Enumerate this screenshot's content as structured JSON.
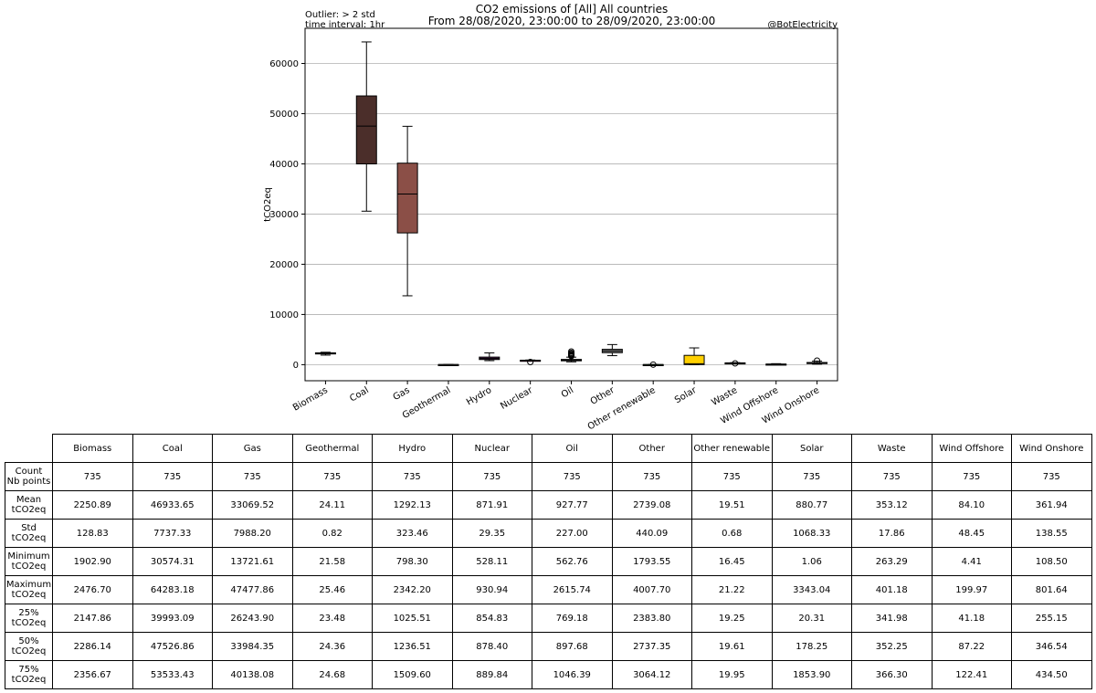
{
  "chart_data": {
    "type": "boxplot",
    "title": [
      "CO2 emissions of [All] All countries",
      "From 28/08/2020, 23:00:00 to 28/09/2020, 23:00:00"
    ],
    "notes": {
      "outlier": "Outlier: > 2 std",
      "interval": "time interval: 1hr",
      "credit": "@BotElectricity"
    },
    "ylabel": "tCO2eq",
    "ylim": [
      -3200,
      67000
    ],
    "yticks": [
      0,
      10000,
      20000,
      30000,
      40000,
      50000,
      60000
    ],
    "grid": "horizontal",
    "categories": [
      "Biomass",
      "Coal",
      "Gas",
      "Geothermal",
      "Hydro",
      "Nuclear",
      "Oil",
      "Other",
      "Other renewable",
      "Solar",
      "Waste",
      "Wind Offshore",
      "Wind Onshore"
    ],
    "colors": [
      "#7a7a7a",
      "#4b2e2a",
      "#8b4f47",
      "#cfc3c0",
      "#5a2a5a",
      "#8a0040",
      "#5c3a1a",
      "#7f7f7f",
      "#35a535",
      "#ffd000",
      "#5a7a1a",
      "#7ec8e3",
      "#1f77b4"
    ],
    "boxes": [
      {
        "min": 1902.9,
        "q1": 2147.86,
        "median": 2286.14,
        "q3": 2356.67,
        "max": 2476.7,
        "outliers": []
      },
      {
        "min": 30574.31,
        "q1": 39993.09,
        "median": 47526.86,
        "q3": 53533.43,
        "max": 64283.18,
        "outliers": []
      },
      {
        "min": 13721.61,
        "q1": 26243.9,
        "median": 33984.35,
        "q3": 40138.08,
        "max": 47477.86,
        "outliers": []
      },
      {
        "min": 21.58,
        "q1": 23.48,
        "median": 24.36,
        "q3": 24.68,
        "max": 25.46,
        "outliers": []
      },
      {
        "min": 798.3,
        "q1": 1025.51,
        "median": 1236.51,
        "q3": 1509.6,
        "max": 2342.2,
        "outliers": []
      },
      {
        "min": 854.83,
        "q1": 854.83,
        "median": 878.4,
        "q3": 889.84,
        "max": 930.94,
        "outliers": [
          528.11
        ]
      },
      {
        "min": 562.76,
        "q1": 769.18,
        "median": 897.68,
        "q3": 1046.39,
        "max": 1500.0,
        "outliers": [
          1700,
          1850,
          2000,
          2150,
          2350,
          2615.74
        ]
      },
      {
        "min": 1793.55,
        "q1": 2383.8,
        "median": 2737.35,
        "q3": 3064.12,
        "max": 4007.7,
        "outliers": []
      },
      {
        "min": 18.5,
        "q1": 19.25,
        "median": 19.61,
        "q3": 19.95,
        "max": 21.22,
        "outliers": [
          16.45
        ]
      },
      {
        "min": 1.06,
        "q1": 20.31,
        "median": 178.25,
        "q3": 1853.9,
        "max": 3343.04,
        "outliers": []
      },
      {
        "min": 310.0,
        "q1": 341.98,
        "median": 352.25,
        "q3": 366.3,
        "max": 401.18,
        "outliers": [
          263.29
        ]
      },
      {
        "min": 4.41,
        "q1": 41.18,
        "median": 87.22,
        "q3": 122.41,
        "max": 199.97,
        "outliers": []
      },
      {
        "min": 108.5,
        "q1": 255.15,
        "median": 346.54,
        "q3": 434.5,
        "max": 720.0,
        "outliers": [
          801.64
        ]
      }
    ]
  },
  "table": {
    "columns": [
      "Biomass",
      "Coal",
      "Gas",
      "Geothermal",
      "Hydro",
      "Nuclear",
      "Oil",
      "Other",
      "Other renewable",
      "Solar",
      "Waste",
      "Wind Offshore",
      "Wind Onshore"
    ],
    "rows": [
      {
        "label": "Count\nNb points",
        "values": [
          "735",
          "735",
          "735",
          "735",
          "735",
          "735",
          "735",
          "735",
          "735",
          "735",
          "735",
          "735",
          "735"
        ]
      },
      {
        "label": "Mean\ntCO2eq",
        "values": [
          "2250.89",
          "46933.65",
          "33069.52",
          "24.11",
          "1292.13",
          "871.91",
          "927.77",
          "2739.08",
          "19.51",
          "880.77",
          "353.12",
          "84.10",
          "361.94"
        ]
      },
      {
        "label": "Std\ntCO2eq",
        "values": [
          "128.83",
          "7737.33",
          "7988.20",
          "0.82",
          "323.46",
          "29.35",
          "227.00",
          "440.09",
          "0.68",
          "1068.33",
          "17.86",
          "48.45",
          "138.55"
        ]
      },
      {
        "label": "Minimum\ntCO2eq",
        "values": [
          "1902.90",
          "30574.31",
          "13721.61",
          "21.58",
          "798.30",
          "528.11",
          "562.76",
          "1793.55",
          "16.45",
          "1.06",
          "263.29",
          "4.41",
          "108.50"
        ]
      },
      {
        "label": "Maximum\ntCO2eq",
        "values": [
          "2476.70",
          "64283.18",
          "47477.86",
          "25.46",
          "2342.20",
          "930.94",
          "2615.74",
          "4007.70",
          "21.22",
          "3343.04",
          "401.18",
          "199.97",
          "801.64"
        ]
      },
      {
        "label": "25%\ntCO2eq",
        "values": [
          "2147.86",
          "39993.09",
          "26243.90",
          "23.48",
          "1025.51",
          "854.83",
          "769.18",
          "2383.80",
          "19.25",
          "20.31",
          "341.98",
          "41.18",
          "255.15"
        ]
      },
      {
        "label": "50%\ntCO2eq",
        "values": [
          "2286.14",
          "47526.86",
          "33984.35",
          "24.36",
          "1236.51",
          "878.40",
          "897.68",
          "2737.35",
          "19.61",
          "178.25",
          "352.25",
          "87.22",
          "346.54"
        ]
      },
      {
        "label": "75%\ntCO2eq",
        "values": [
          "2356.67",
          "53533.43",
          "40138.08",
          "24.68",
          "1509.60",
          "889.84",
          "1046.39",
          "3064.12",
          "19.95",
          "1853.90",
          "366.30",
          "122.41",
          "434.50"
        ]
      }
    ]
  }
}
